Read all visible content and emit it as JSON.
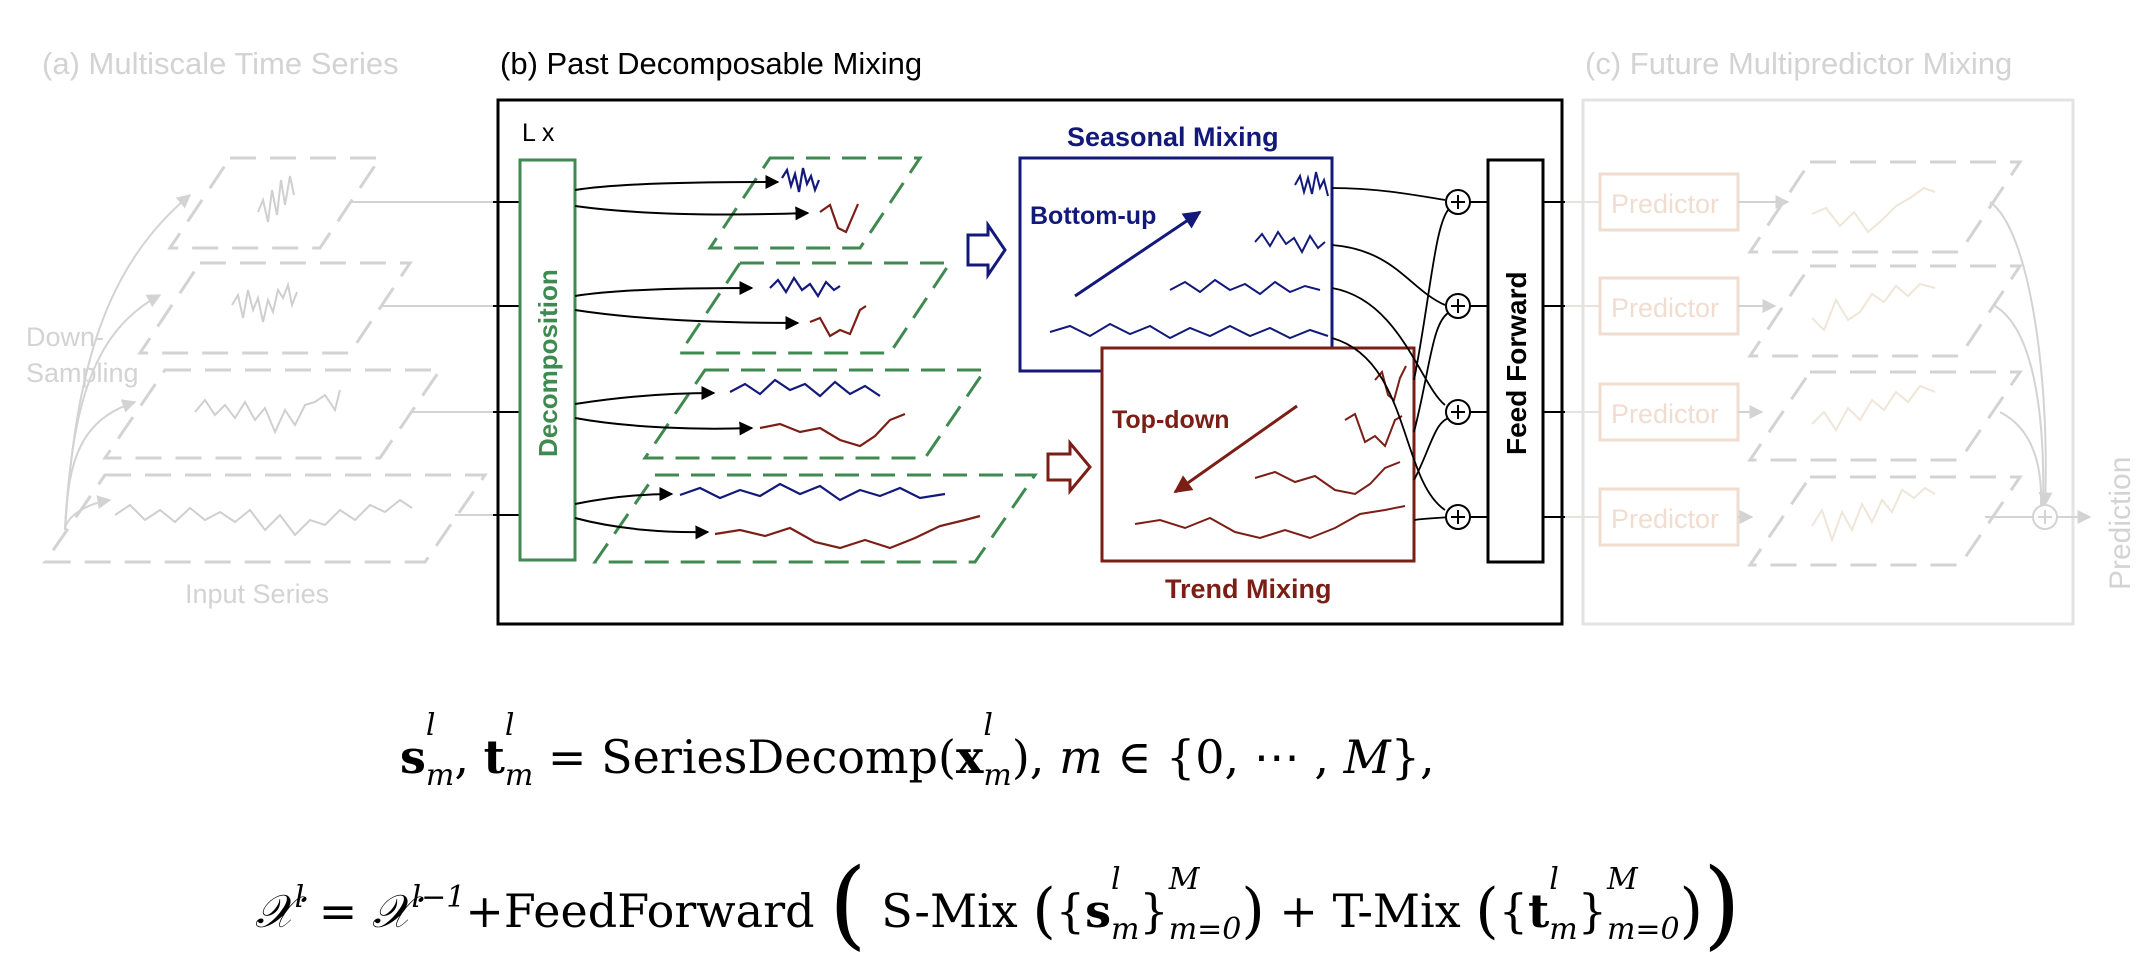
{
  "sections": {
    "a_title": "(a) Multiscale Time Series",
    "b_title": "(b) Past Decomposable Mixing",
    "c_title": "(c) Future Multipredictor Mixing"
  },
  "labels": {
    "down_sampling_1": "Down-",
    "down_sampling_2": "Sampling",
    "input_series": "Input Series",
    "layer_repeat": "L x",
    "decomposition": "Decomposition",
    "seasonal_mixing": "Seasonal Mixing",
    "bottom_up": "Bottom-up",
    "top_down": "Top-down",
    "trend_mixing": "Trend Mixing",
    "feed_forward": "Feed Forward",
    "predictor": "Predictor",
    "prediction": "Prediction"
  },
  "colors": {
    "navy": "#13197a",
    "maroon": "#7b1f16",
    "green": "#3f8a50",
    "ghost": "#d3d3d3",
    "tan": "#f0ddd0"
  },
  "equations": {
    "line1": "s_m^l, t_m^l = SeriesDecomp(x_m^l), m ∈ {0, ⋯ , M},",
    "line2": "𝒳^l = 𝒳^(l−1) + FeedForward ( S-Mix ({s_m^l}_(m=0)^M) + T-Mix ({t_m^l}_(m=0)^M) )",
    "fn_decomp": "SeriesDecomp",
    "fn_ff": "FeedForward",
    "fn_smix": "S-Mix",
    "fn_tmix": "T-Mix"
  }
}
